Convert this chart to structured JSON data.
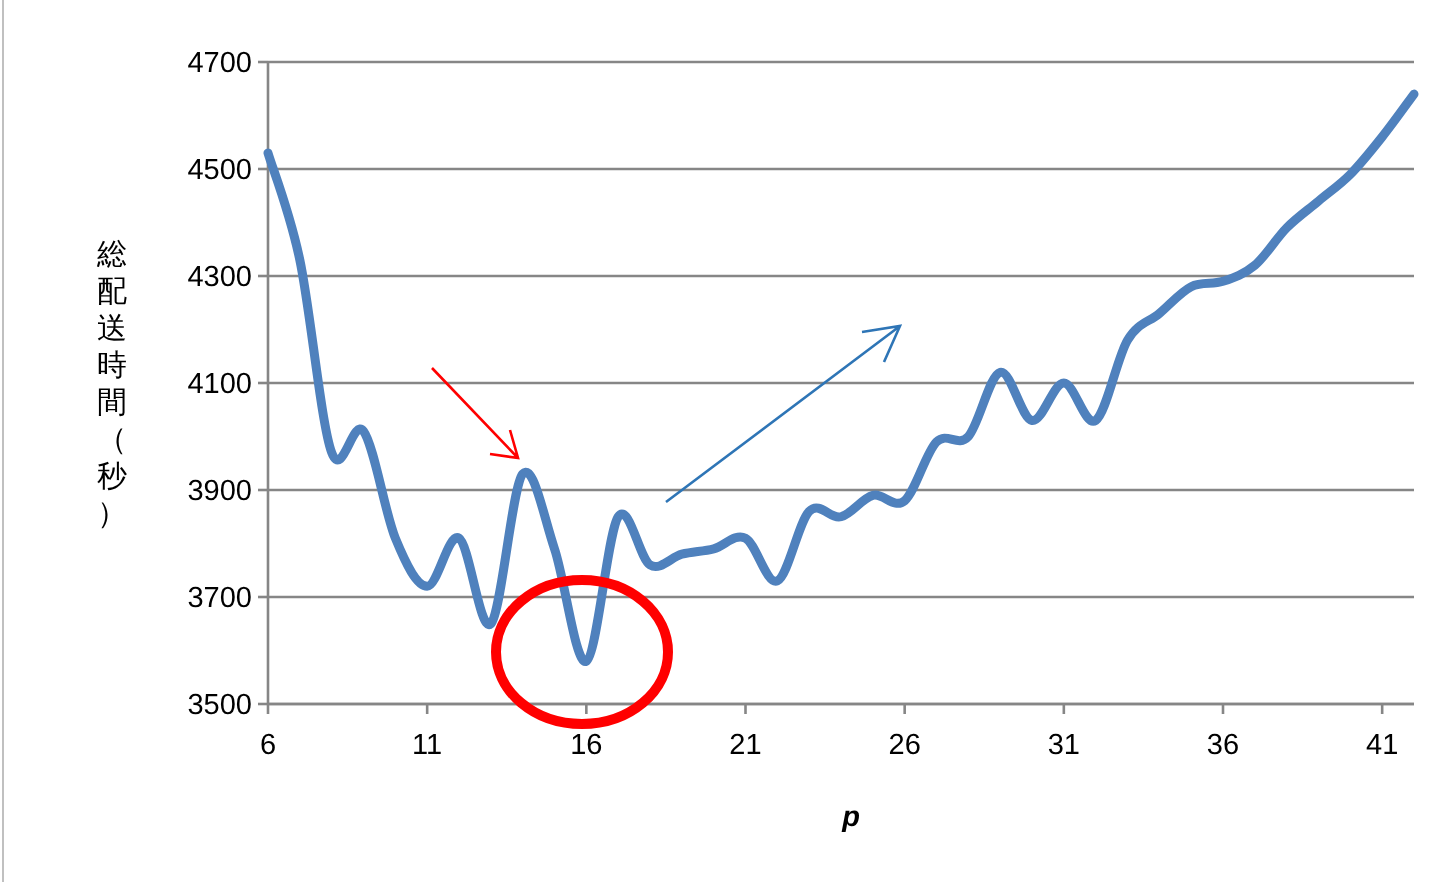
{
  "chart_data": {
    "type": "line",
    "xlabel": "p",
    "ylabel": "総配送時間（秒）",
    "x": [
      6,
      7,
      8,
      9,
      10,
      11,
      12,
      13,
      14,
      15,
      16,
      17,
      18,
      19,
      20,
      21,
      22,
      23,
      24,
      25,
      26,
      27,
      28,
      29,
      30,
      31,
      32,
      33,
      34,
      35,
      36,
      37,
      38,
      39,
      40,
      41,
      42
    ],
    "series": [
      {
        "color": "#4f81bd",
        "values": [
          4530,
          4330,
          3970,
          4010,
          3810,
          3720,
          3810,
          3650,
          3930,
          3790,
          3580,
          3850,
          3760,
          3780,
          3790,
          3810,
          3730,
          3860,
          3850,
          3890,
          3880,
          3990,
          4000,
          4120,
          4030,
          4100,
          4030,
          4180,
          4230,
          4280,
          4290,
          4320,
          4390,
          4440,
          4490,
          4560,
          4640
        ]
      }
    ],
    "xlim": [
      6,
      42
    ],
    "xticks": [
      6,
      11,
      16,
      21,
      26,
      31,
      36,
      41
    ],
    "ylim": [
      3500,
      4700
    ],
    "yticks": [
      3500,
      3700,
      3900,
      4100,
      4300,
      4500,
      4700
    ],
    "grid": "y",
    "marker": "none",
    "line_style": "solid"
  }
}
